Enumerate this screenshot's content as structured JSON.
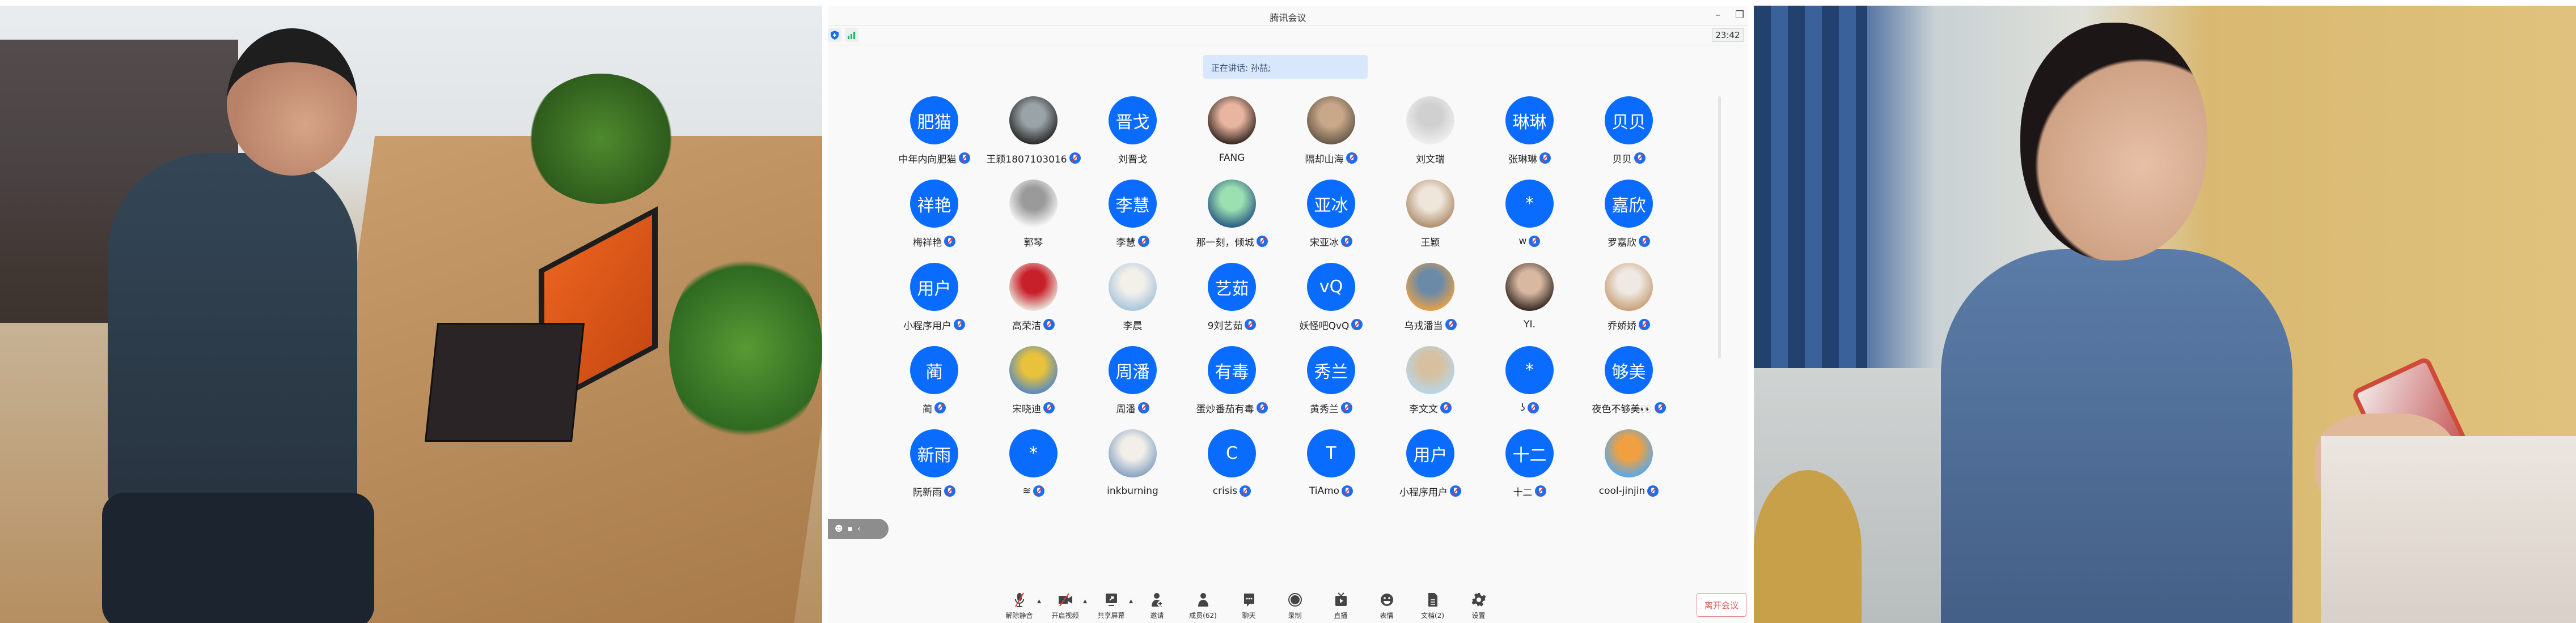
{
  "app": {
    "title": "腾讯会议",
    "clock": "23:42",
    "speaking_banner": "正在讲话: 孙喆;",
    "accent_color": "#0a6cff",
    "leave_button": "离开会议"
  },
  "participants": [
    {
      "avatar_text": "肥猫",
      "name": "中年内向肥猫",
      "muted": true
    },
    {
      "avatar_text": "",
      "photo": [
        "#2b2b2b",
        "#9aa3a8"
      ],
      "name": "王颖1807103016",
      "muted": true
    },
    {
      "avatar_text": "晋戈",
      "name": "刘晋戈",
      "muted": false
    },
    {
      "avatar_text": "",
      "photo": [
        "#3a2a24",
        "#e8b6a0"
      ],
      "name": "FANG",
      "muted": false
    },
    {
      "avatar_text": "",
      "photo": [
        "#6a5a48",
        "#c9a88a"
      ],
      "name": "隔却山海",
      "muted": true
    },
    {
      "avatar_text": "",
      "photo": [
        "#eeeeee",
        "#d0d0d0"
      ],
      "name": "刘文瑞",
      "muted": false
    },
    {
      "avatar_text": "琳琳",
      "name": "张琳琳",
      "muted": true
    },
    {
      "avatar_text": "贝贝",
      "name": "贝贝",
      "muted": true
    },
    {
      "avatar_text": "祥艳",
      "name": "梅祥艳",
      "muted": true
    },
    {
      "avatar_text": "",
      "photo": [
        "#f6f6f6",
        "#9a9a9a"
      ],
      "name": "郭琴",
      "muted": false
    },
    {
      "avatar_text": "李慧",
      "name": "李慧",
      "muted": true
    },
    {
      "avatar_text": "",
      "photo": [
        "#2f5e86",
        "#9be0b0"
      ],
      "name": "那一刻，倾城",
      "muted": true
    },
    {
      "avatar_text": "亚冰",
      "name": "宋亚冰",
      "muted": true
    },
    {
      "avatar_text": "",
      "photo": [
        "#b09070",
        "#efe6da"
      ],
      "name": "王颖",
      "muted": false
    },
    {
      "avatar_text": "*",
      "name": "w",
      "muted": true
    },
    {
      "avatar_text": "嘉欣",
      "name": "罗嘉欣",
      "muted": true
    },
    {
      "avatar_text": "用户",
      "name": "小程序用户",
      "muted": true
    },
    {
      "avatar_text": "",
      "photo": [
        "#e9e2d6",
        "#c8202a"
      ],
      "name": "高荣洁",
      "muted": true
    },
    {
      "avatar_text": "",
      "photo": [
        "#a9c6dc",
        "#f3f0ea"
      ],
      "name": "李晨",
      "muted": false
    },
    {
      "avatar_text": "艺茹",
      "name": "9刘艺茹",
      "muted": true
    },
    {
      "avatar_text": "vQ",
      "name": "妖怪吧QvQ",
      "muted": true
    },
    {
      "avatar_text": "",
      "photo": [
        "#e3a04a",
        "#6b8aa8"
      ],
      "name": "乌戎潘当",
      "muted": true
    },
    {
      "avatar_text": "",
      "photo": [
        "#3a2c26",
        "#d9b8a2"
      ],
      "name": "YI.",
      "muted": false
    },
    {
      "avatar_text": "",
      "photo": [
        "#c9a27a",
        "#efe9e4"
      ],
      "name": "乔娇娇",
      "muted": true
    },
    {
      "avatar_text": "蔺",
      "name": "蔺",
      "muted": true
    },
    {
      "avatar_text": "",
      "photo": [
        "#5a8ac0",
        "#e8c23a"
      ],
      "name": "宋晓迪",
      "muted": true
    },
    {
      "avatar_text": "周潘",
      "name": "周潘",
      "muted": true
    },
    {
      "avatar_text": "有毒",
      "name": "蛋炒番茄有毒",
      "muted": true
    },
    {
      "avatar_text": "秀兰",
      "name": "黄秀兰",
      "muted": true
    },
    {
      "avatar_text": "",
      "photo": [
        "#b8d6e8",
        "#d7c0a0"
      ],
      "name": "李文文",
      "muted": true
    },
    {
      "avatar_text": "*",
      "name": "ʖ",
      "muted": true
    },
    {
      "avatar_text": "够美",
      "name": "夜色不够美👀",
      "muted": true
    },
    {
      "avatar_text": "新雨",
      "name": "阮新雨",
      "muted": true
    },
    {
      "avatar_text": "*",
      "name": "≋",
      "muted": true
    },
    {
      "avatar_text": "",
      "photo": [
        "#8aa4c4",
        "#f2efe8"
      ],
      "name": "inkburning",
      "muted": false
    },
    {
      "avatar_text": "C",
      "name": "crisis",
      "muted": true
    },
    {
      "avatar_text": "T",
      "name": "TiAmo",
      "muted": true
    },
    {
      "avatar_text": "用户",
      "name": "小程序用户",
      "muted": true
    },
    {
      "avatar_text": "十二",
      "name": "十二",
      "muted": true
    },
    {
      "avatar_text": "",
      "photo": [
        "#5aa8e8",
        "#f0a040"
      ],
      "name": "cool-jinjin",
      "muted": true
    }
  ],
  "toolbar": [
    {
      "label": "解除静音",
      "icon": "mic-muted-icon",
      "caret": true
    },
    {
      "label": "开启视频",
      "icon": "camera-off-icon",
      "caret": true
    },
    {
      "label": "共享屏幕",
      "icon": "share-screen-icon",
      "caret": true
    },
    {
      "label": "邀请",
      "icon": "invite-icon",
      "caret": false
    },
    {
      "label": "成员(62)",
      "icon": "members-icon",
      "caret": false
    },
    {
      "label": "聊天",
      "icon": "chat-icon",
      "caret": false
    },
    {
      "label": "录制",
      "icon": "record-icon",
      "caret": false
    },
    {
      "label": "直播",
      "icon": "live-icon",
      "caret": false
    },
    {
      "label": "表情",
      "icon": "emoji-icon",
      "caret": false
    },
    {
      "label": "文档(2)",
      "icon": "document-icon",
      "caret": false
    },
    {
      "label": "设置",
      "icon": "gear-icon",
      "caret": false
    }
  ]
}
